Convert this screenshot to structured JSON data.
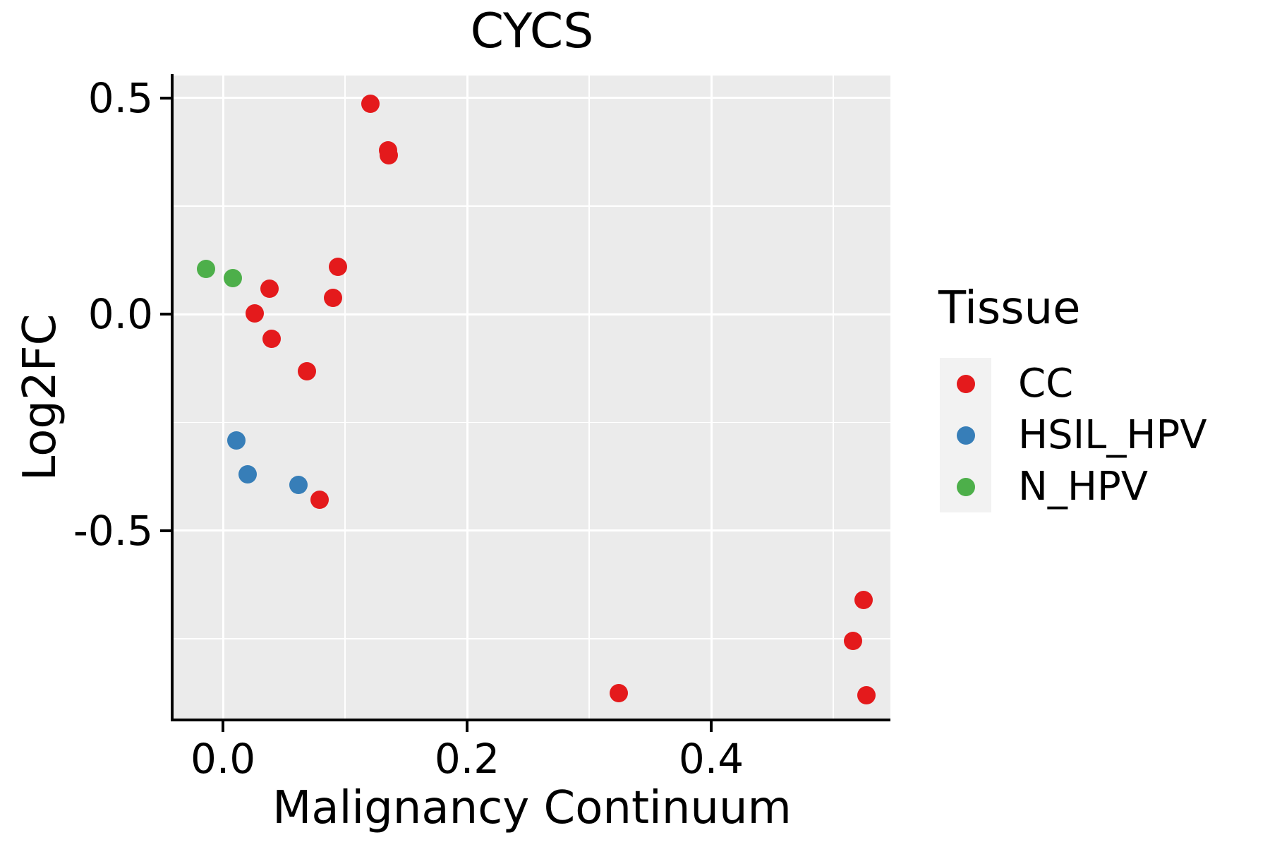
{
  "title": "CYCS",
  "colors": {
    "panel_background": "#EBEBEB",
    "gridline": "#FFFFFF",
    "axis": "#000000",
    "text": "#000000",
    "legend_key_background": "#F2F2F2",
    "cc": "#E41A1C",
    "hsil_hpv": "#377EB8",
    "n_hpv": "#4DAF4A"
  },
  "legend": {
    "title": "Tissue",
    "entries": [
      {
        "label": "CC",
        "color": "#E41A1C"
      },
      {
        "label": "HSIL_HPV",
        "color": "#377EB8"
      },
      {
        "label": "N_HPV",
        "color": "#4DAF4A"
      }
    ]
  },
  "chart_data": {
    "type": "scatter",
    "title": "CYCS",
    "xlabel": "Malignancy Continuum",
    "ylabel": "Log2FC",
    "xlim": [
      -0.0405,
      0.5468
    ],
    "ylim": [
      -0.9372,
      0.5522
    ],
    "x_major_ticks": [
      0.0,
      0.2,
      0.4
    ],
    "x_tick_labels": [
      "0.0",
      "0.2",
      "0.4"
    ],
    "x_minor_ticks": [
      0.1,
      0.3,
      0.5
    ],
    "y_major_ticks": [
      0.5,
      0.0,
      -0.5
    ],
    "y_tick_labels": [
      "0.5",
      "0.0",
      "-0.5"
    ],
    "y_minor_ticks": [
      0.25,
      -0.25,
      -0.75
    ],
    "grid": true,
    "legend_position": "right",
    "legend_title": "Tissue",
    "marker_size_px": 26,
    "series": [
      {
        "name": "CC",
        "color": "#E41A1C",
        "points": [
          [
            0.121,
            0.487
          ],
          [
            0.135,
            0.38
          ],
          [
            0.136,
            0.368
          ],
          [
            0.094,
            0.11
          ],
          [
            0.09,
            0.038
          ],
          [
            0.038,
            0.06
          ],
          [
            0.026,
            0.003
          ],
          [
            0.04,
            -0.056
          ],
          [
            0.069,
            -0.131
          ],
          [
            0.079,
            -0.428
          ],
          [
            0.324,
            -0.876
          ],
          [
            0.525,
            -0.66
          ],
          [
            0.516,
            -0.754
          ],
          [
            0.527,
            -0.88
          ]
        ]
      },
      {
        "name": "HSIL_HPV",
        "color": "#377EB8",
        "points": [
          [
            0.011,
            -0.291
          ],
          [
            0.02,
            -0.37
          ],
          [
            0.062,
            -0.394
          ]
        ]
      },
      {
        "name": "N_HPV",
        "color": "#4DAF4A",
        "points": [
          [
            -0.014,
            0.105
          ],
          [
            0.008,
            0.084
          ]
        ]
      }
    ]
  }
}
